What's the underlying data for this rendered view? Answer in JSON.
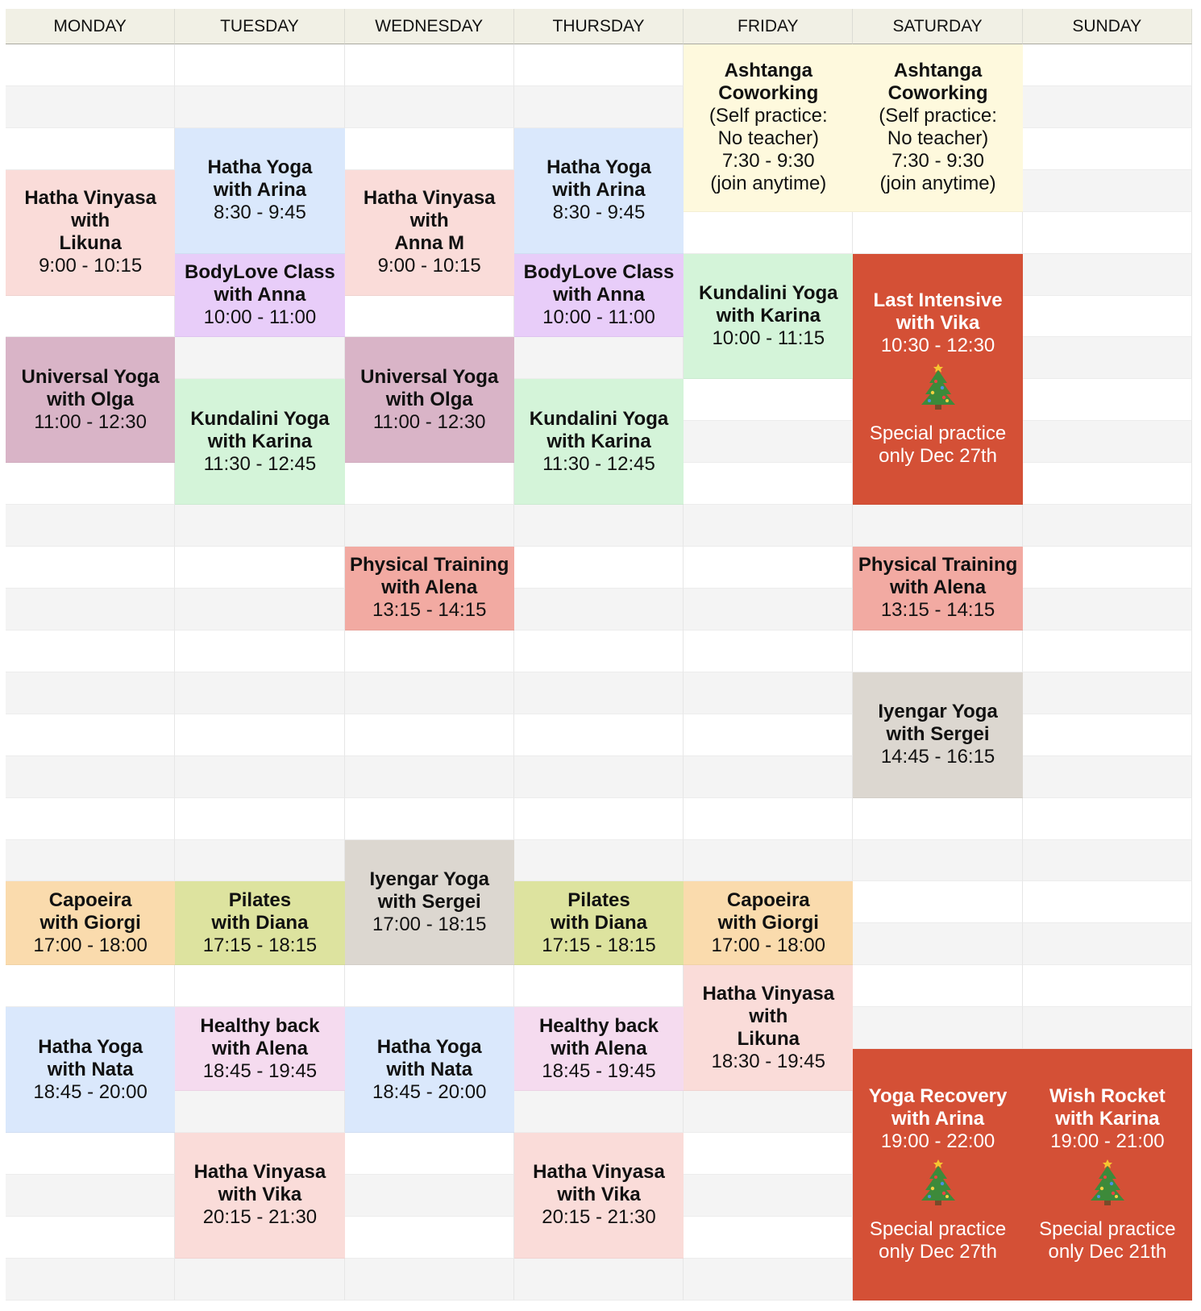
{
  "days": [
    "MONDAY",
    "TUESDAY",
    "WEDNESDAY",
    "THURSDAY",
    "FRIDAY",
    "SATURDAY",
    "SUNDAY"
  ],
  "colors": {
    "peach": "#fadcd9",
    "blue": "#dae8fc",
    "lavender": "#e8cdf9",
    "mauve": "#d9b4c7",
    "green": "#d4f4d9",
    "salmon": "#f2aaa2",
    "beige": "#dcd7d0",
    "orange": "#fadbad",
    "olive": "#dde39f",
    "pink": "#f5dbef",
    "yellow": "#fef9dd",
    "red": "#d45036"
  },
  "events": [
    {
      "day": 0,
      "color": "peach",
      "bold": [
        "Hatha Vinyasa",
        "with",
        "Likuna"
      ],
      "text": [
        "9:00 - 10:15"
      ]
    },
    {
      "day": 0,
      "color": "mauve",
      "bold": [
        "Universal Yoga",
        "with Olga"
      ],
      "text": [
        "11:00 - 12:30"
      ]
    },
    {
      "day": 0,
      "color": "orange",
      "bold": [
        "Capoeira",
        "with Giorgi"
      ],
      "text": [
        "17:00 - 18:00"
      ]
    },
    {
      "day": 0,
      "color": "blue",
      "bold": [
        "Hatha Yoga",
        "with Nata"
      ],
      "text": [
        "18:45 - 20:00"
      ]
    },
    {
      "day": 1,
      "color": "blue",
      "bold": [
        "Hatha Yoga",
        "with Arina"
      ],
      "text": [
        "8:30 - 9:45"
      ]
    },
    {
      "day": 1,
      "color": "lavender",
      "bold": [
        "BodyLove Class",
        "with Anna"
      ],
      "text": [
        "10:00 - 11:00"
      ]
    },
    {
      "day": 1,
      "color": "green",
      "bold": [
        "Kundalini Yoga",
        "with Karina"
      ],
      "text": [
        "11:30 - 12:45"
      ]
    },
    {
      "day": 1,
      "color": "olive",
      "bold": [
        "Pilates",
        "with Diana"
      ],
      "text": [
        "17:15 - 18:15"
      ]
    },
    {
      "day": 1,
      "color": "pink",
      "bold": [
        "Healthy back",
        "with Alena"
      ],
      "text": [
        "18:45 - 19:45"
      ]
    },
    {
      "day": 1,
      "color": "peach",
      "bold": [
        "Hatha Vinyasa",
        "with Vika"
      ],
      "text": [
        "20:15 - 21:30"
      ]
    },
    {
      "day": 2,
      "color": "peach",
      "bold": [
        "Hatha Vinyasa",
        "with",
        "Anna M"
      ],
      "text": [
        "9:00 - 10:15"
      ]
    },
    {
      "day": 2,
      "color": "mauve",
      "bold": [
        "Universal Yoga",
        "with Olga"
      ],
      "text": [
        "11:00 - 12:30"
      ]
    },
    {
      "day": 2,
      "color": "salmon",
      "bold": [
        "Physical Training",
        "with Alena"
      ],
      "text": [
        "13:15 - 14:15"
      ]
    },
    {
      "day": 2,
      "color": "beige",
      "bold": [
        "Iyengar Yoga",
        "with Sergei"
      ],
      "text": [
        "17:00 - 18:15"
      ]
    },
    {
      "day": 2,
      "color": "blue",
      "bold": [
        "Hatha Yoga",
        "with Nata"
      ],
      "text": [
        "18:45 - 20:00"
      ]
    },
    {
      "day": 3,
      "color": "blue",
      "bold": [
        "Hatha Yoga",
        "with Arina"
      ],
      "text": [
        "8:30 - 9:45"
      ]
    },
    {
      "day": 3,
      "color": "lavender",
      "bold": [
        "BodyLove Class",
        "with Anna"
      ],
      "text": [
        "10:00 - 11:00"
      ]
    },
    {
      "day": 3,
      "color": "green",
      "bold": [
        "Kundalini Yoga",
        "with Karina"
      ],
      "text": [
        "11:30 - 12:45"
      ]
    },
    {
      "day": 3,
      "color": "olive",
      "bold": [
        "Pilates",
        "with Diana"
      ],
      "text": [
        "17:15 - 18:15"
      ]
    },
    {
      "day": 3,
      "color": "pink",
      "bold": [
        "Healthy back",
        "with Alena"
      ],
      "text": [
        "18:45 - 19:45"
      ]
    },
    {
      "day": 3,
      "color": "peach",
      "bold": [
        "Hatha Vinyasa",
        "with Vika"
      ],
      "text": [
        "20:15 - 21:30"
      ]
    },
    {
      "day": 4,
      "color": "yellow",
      "bold": [
        "Ashtanga",
        "Coworking"
      ],
      "text": [
        "(Self practice:",
        "No teacher)",
        "7:30 - 9:30",
        "(join anytime)"
      ]
    },
    {
      "day": 4,
      "color": "green",
      "bold": [
        "Kundalini Yoga",
        "with Karina"
      ],
      "text": [
        "10:00 - 11:15"
      ]
    },
    {
      "day": 4,
      "color": "orange",
      "bold": [
        "Capoeira",
        "with Giorgi"
      ],
      "text": [
        "17:00 - 18:00"
      ]
    },
    {
      "day": 4,
      "color": "peach",
      "bold": [
        "Hatha Vinyasa",
        "with",
        "Likuna"
      ],
      "text": [
        "18:30 - 19:45"
      ]
    },
    {
      "day": 5,
      "color": "yellow",
      "bold": [
        "Ashtanga",
        "Coworking"
      ],
      "text": [
        "(Self practice:",
        "No teacher)",
        "7:30 - 9:30",
        "(join anytime)"
      ]
    },
    {
      "day": 5,
      "color": "red",
      "bold": [
        "Last Intensive",
        "with Vika"
      ],
      "text": [
        "10:30 - 12:30"
      ],
      "icon": "christmas-tree-icon",
      "note": [
        "Special practice",
        "only Dec 27th"
      ]
    },
    {
      "day": 5,
      "color": "salmon",
      "bold": [
        "Physical Training",
        "with Alena"
      ],
      "text": [
        "13:15 - 14:15"
      ]
    },
    {
      "day": 5,
      "color": "beige",
      "bold": [
        "Iyengar Yoga",
        "with Sergei"
      ],
      "text": [
        "14:45 - 16:15"
      ]
    },
    {
      "day": 5,
      "color": "red",
      "bold": [
        "Yoga Recovery",
        "with Arina"
      ],
      "text": [
        "19:00 - 22:00"
      ],
      "icon": "christmas-tree-icon",
      "note": [
        "Special practice",
        "only Dec 27th"
      ]
    },
    {
      "day": 6,
      "color": "red",
      "bold": [
        "Wish Rocket",
        "with Karina"
      ],
      "text": [
        "19:00 - 21:00"
      ],
      "icon": "christmas-tree-icon",
      "note": [
        "Special practice",
        "only Dec 21th"
      ]
    }
  ]
}
